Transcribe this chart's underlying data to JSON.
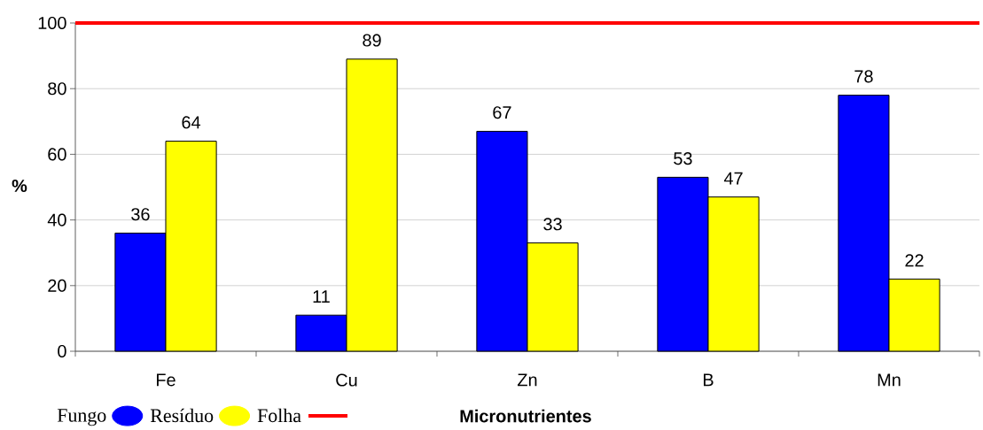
{
  "chart_data": {
    "type": "bar",
    "categories": [
      "Fe",
      "Cu",
      "Zn",
      "B",
      "Mn"
    ],
    "series": [
      {
        "name": "Fungo",
        "color": "#0000ff",
        "values": [
          36,
          11,
          67,
          53,
          78
        ]
      },
      {
        "name": "Resíduo",
        "color": "#ffff00",
        "values": [
          64,
          89,
          33,
          47,
          22
        ]
      }
    ],
    "xlabel": "Micronutrientes",
    "ylabel": "%",
    "ylim": [
      0,
      100
    ],
    "yticks": [
      0,
      20,
      40,
      60,
      80,
      100
    ],
    "grid": "y",
    "legend": "bottom left",
    "data_labels": true,
    "ref_lines": [
      {
        "axis": "y",
        "value": 100,
        "label": "Folha",
        "color": "#ff0000"
      }
    ]
  }
}
